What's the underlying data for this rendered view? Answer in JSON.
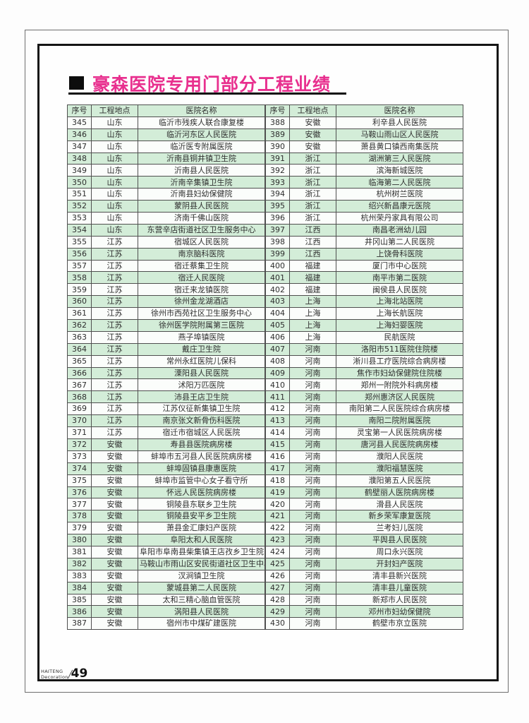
{
  "page": {
    "title": "豪森医院专用门部分工程业绩",
    "footer": {
      "brand_line1": "HAITENG",
      "brand_line2": "Decoration",
      "page_number": "49"
    }
  },
  "colors": {
    "accent": "#e82f8e",
    "row_green": "#d3edd8",
    "row_white": "#fbfdfb",
    "grid": "#4f4f4f"
  },
  "table": {
    "headers": [
      "序号",
      "工程地点",
      "医院名称"
    ],
    "left_rows": [
      [
        "345",
        "山东",
        "临沂市残疾人联合康复楼"
      ],
      [
        "346",
        "山东",
        "临沂河东区人民医院"
      ],
      [
        "347",
        "山东",
        "临沂医专附属医院"
      ],
      [
        "348",
        "山东",
        "沂南县铜井镇卫生院"
      ],
      [
        "349",
        "山东",
        "沂南县人民医院"
      ],
      [
        "350",
        "山东",
        "沂南辛集镇卫生院"
      ],
      [
        "351",
        "山东",
        "沂南县妇幼保健院"
      ],
      [
        "352",
        "山东",
        "蒙阴县人民医院"
      ],
      [
        "353",
        "山东",
        "济南千佛山医院"
      ],
      [
        "354",
        "山东",
        "东营辛店街道社区卫生服务中心"
      ],
      [
        "355",
        "江苏",
        "宿城区人民医院"
      ],
      [
        "356",
        "江苏",
        "南京脑科医院"
      ],
      [
        "357",
        "江苏",
        "宿迁蔡集卫生院"
      ],
      [
        "358",
        "江苏",
        "宿迁人民医院"
      ],
      [
        "359",
        "江苏",
        "宿迁来龙镇医院"
      ],
      [
        "360",
        "江苏",
        "徐州金龙湖酒店"
      ],
      [
        "361",
        "江苏",
        "徐州市西苑社区卫生服务中心"
      ],
      [
        "362",
        "江苏",
        "徐州医学院附属第三医院"
      ],
      [
        "363",
        "江苏",
        "燕子埠镇医院"
      ],
      [
        "364",
        "江苏",
        "戴庄卫生院"
      ],
      [
        "365",
        "江苏",
        "常州永红医院儿保科"
      ],
      [
        "366",
        "江苏",
        "溧阳县人民医院"
      ],
      [
        "367",
        "江苏",
        "沭阳万匹医院"
      ],
      [
        "368",
        "江苏",
        "沛县王店卫生院"
      ],
      [
        "369",
        "江苏",
        "江苏仪征新集镇卫生院"
      ],
      [
        "370",
        "江苏",
        "南京张文新骨伤科医院"
      ],
      [
        "371",
        "江苏",
        "宿迁市宿城区人民医院"
      ],
      [
        "372",
        "安徽",
        "寿县县医院病房楼"
      ],
      [
        "373",
        "安徽",
        "蚌埠市五河县人民医院病房楼"
      ],
      [
        "374",
        "安徽",
        "蚌埠固镇县康惠医院"
      ],
      [
        "375",
        "安徽",
        "蚌埠市监管中心女子看守所"
      ],
      [
        "376",
        "安徽",
        "怀远人民医院病房楼"
      ],
      [
        "377",
        "安徽",
        "铜陵县东联乡卫生院"
      ],
      [
        "378",
        "安徽",
        "铜陵县安平乡卫生院"
      ],
      [
        "379",
        "安徽",
        "萧县金汇康妇产医院"
      ],
      [
        "380",
        "安徽",
        "阜阳太和人民医院"
      ],
      [
        "381",
        "安徽",
        "阜阳市阜南县柴集镇王店孜乡卫生院"
      ],
      [
        "382",
        "安徽",
        "马鞍山市雨山区安民街道社区卫生中心"
      ],
      [
        "383",
        "安徽",
        "汊涧镇卫生院"
      ],
      [
        "384",
        "安徽",
        "蒙城县第二人民医院"
      ],
      [
        "385",
        "安徽",
        "太和三精心脑血管医院"
      ],
      [
        "386",
        "安徽",
        "涡阳县人民医院"
      ],
      [
        "387",
        "安徽",
        "宿州市中煤矿建医院"
      ]
    ],
    "right_rows": [
      [
        "388",
        "安徽",
        "利辛县人民医院"
      ],
      [
        "389",
        "安徽",
        "马鞍山雨山区人民医院"
      ],
      [
        "390",
        "安徽",
        "萧县黄口镇西南集医院"
      ],
      [
        "391",
        "浙江",
        "湖洲第三人民医院"
      ],
      [
        "392",
        "浙江",
        "滨海新城医院"
      ],
      [
        "393",
        "浙江",
        "临海第二人民医院"
      ],
      [
        "394",
        "浙江",
        "杭州树兰医院"
      ],
      [
        "395",
        "浙江",
        "绍兴新昌康元医院"
      ],
      [
        "396",
        "浙江",
        "杭州荣丹家具有限公司"
      ],
      [
        "397",
        "江西",
        "南昌老洲幼儿园"
      ],
      [
        "398",
        "江西",
        "井冈山第二人民医院"
      ],
      [
        "399",
        "江西",
        "上饶骨科医院"
      ],
      [
        "400",
        "福建",
        "厦门市中心医院"
      ],
      [
        "401",
        "福建",
        "南平市第二医院"
      ],
      [
        "402",
        "福建",
        "闽侯县人民医院"
      ],
      [
        "403",
        "上海",
        "上海北站医院"
      ],
      [
        "404",
        "上海",
        "上海长航医院"
      ],
      [
        "405",
        "上海",
        "上海妇婴医院"
      ],
      [
        "406",
        "上海",
        "民航医院"
      ],
      [
        "407",
        "河南",
        "洛阳市511医院住院楼"
      ],
      [
        "408",
        "河南",
        "淅川县工疗医院综合病房楼"
      ],
      [
        "409",
        "河南",
        "焦作市妇幼保健院住院楼"
      ],
      [
        "410",
        "河南",
        "郑州一附院外科病房楼"
      ],
      [
        "411",
        "河南",
        "郑州惠济区人民医院"
      ],
      [
        "412",
        "河南",
        "南阳第二人民医院综合病房楼"
      ],
      [
        "413",
        "河南",
        "南阳二院附属医院"
      ],
      [
        "414",
        "河南",
        "灵宝第一人民医院病房楼"
      ],
      [
        "415",
        "河南",
        "唐河县人民医院病房楼"
      ],
      [
        "416",
        "河南",
        "濮阳人民医院"
      ],
      [
        "417",
        "河南",
        "濮阳福慧医院"
      ],
      [
        "418",
        "河南",
        "濮阳第五人民医院"
      ],
      [
        "419",
        "河南",
        "鹤壁丽人医院病房楼"
      ],
      [
        "420",
        "河南",
        "滑县人民医院"
      ],
      [
        "421",
        "河南",
        "新乡荣军康复医院"
      ],
      [
        "422",
        "河南",
        "兰考妇儿医院"
      ],
      [
        "423",
        "河南",
        "平舆县人民医院"
      ],
      [
        "424",
        "河南",
        "周口永兴医院"
      ],
      [
        "425",
        "河南",
        "开封妇产医院"
      ],
      [
        "426",
        "河南",
        "清丰县新兴医院"
      ],
      [
        "427",
        "河南",
        "清丰县儿童医院"
      ],
      [
        "428",
        "河南",
        "新郑市人民医院"
      ],
      [
        "429",
        "河南",
        "邓州市妇幼保健院"
      ],
      [
        "430",
        "河南",
        "鹤壁市京立医院"
      ]
    ]
  }
}
